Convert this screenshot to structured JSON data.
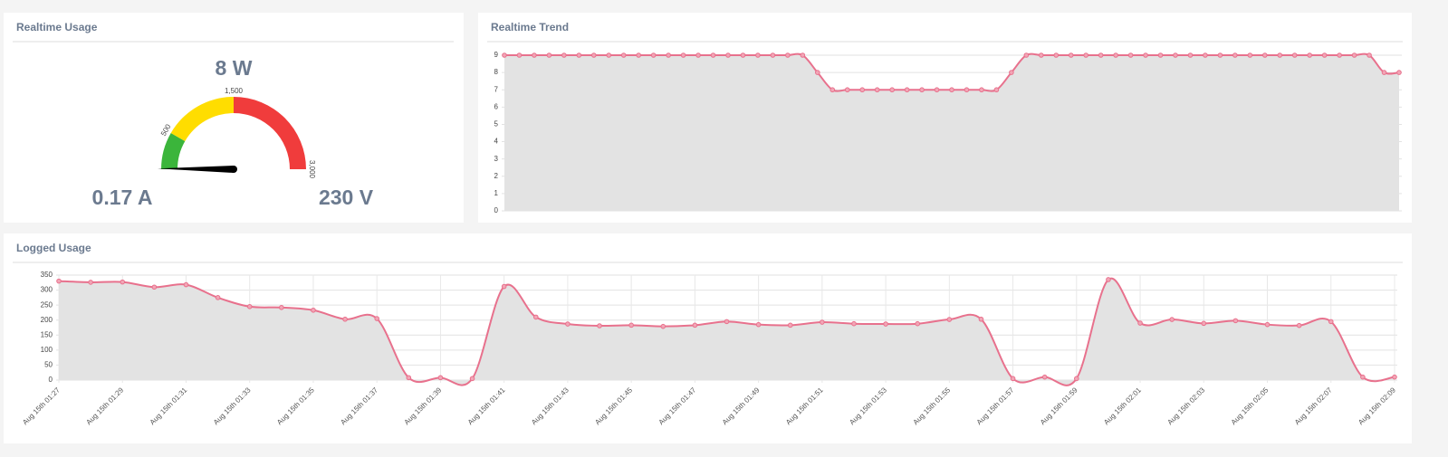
{
  "chart_data": [
    {
      "type": "gauge",
      "title": "Realtime Usage",
      "values": [
        8
      ],
      "value_labels": [
        "8 W"
      ],
      "annotations": [
        "0.17 A",
        "230 V"
      ],
      "ylim": [
        0,
        3000
      ],
      "yticks": [
        500,
        {
          "value": 1500,
          "label": "1,500"
        },
        {
          "value": 3000,
          "label": "3,000"
        }
      ],
      "bands": [
        {
          "from": 0,
          "to": 500,
          "color": "#3bb53b"
        },
        {
          "from": 500,
          "to": 1500,
          "color": "#ffdd00"
        },
        {
          "from": 1500,
          "to": 3000,
          "color": "#f03c3c"
        }
      ],
      "needle_color": "#000000"
    },
    {
      "type": "line",
      "title": "Realtime Trend",
      "values": [
        9,
        9,
        9,
        9,
        9,
        9,
        9,
        9,
        9,
        9,
        9,
        9,
        9,
        9,
        9,
        9,
        9,
        9,
        9,
        9,
        9,
        8,
        7,
        7,
        7,
        7,
        7,
        7,
        7,
        7,
        7,
        7,
        7,
        7,
        8,
        9,
        9,
        9,
        9,
        9,
        9,
        9,
        9,
        9,
        9,
        9,
        9,
        9,
        9,
        9,
        9,
        9,
        9,
        9,
        9,
        9,
        9,
        9,
        9,
        8,
        8
      ],
      "color": "#e8718d",
      "fill": "#e3e3e3",
      "ylim": [
        0,
        9
      ],
      "yticks": [
        0,
        1,
        2,
        3,
        4,
        5,
        6,
        7,
        8,
        9
      ],
      "grid": true,
      "vgrid": false
    },
    {
      "type": "line",
      "title": "Logged Usage",
      "categories": [
        "Aug 15th 01:27",
        null,
        "Aug 15th 01:29",
        null,
        "Aug 15th 01:31",
        null,
        "Aug 15th 01:33",
        null,
        "Aug 15th 01:35",
        null,
        "Aug 15th 01:37",
        null,
        "Aug 15th 01:39",
        null,
        "Aug 15th 01:41",
        null,
        "Aug 15th 01:43",
        null,
        "Aug 15th 01:45",
        null,
        "Aug 15th 01:47",
        null,
        "Aug 15th 01:49",
        null,
        "Aug 15th 01:51",
        null,
        "Aug 15th 01:53",
        null,
        "Aug 15th 01:55",
        null,
        "Aug 15th 01:57",
        null,
        "Aug 15th 01:59",
        null,
        "Aug 15th 02:01",
        null,
        "Aug 15th 02:03",
        null,
        "Aug 15th 02:05",
        null,
        "Aug 15th 02:07",
        null,
        "Aug 15th 02:09"
      ],
      "values": [
        330,
        326,
        327,
        310,
        318,
        275,
        245,
        242,
        233,
        203,
        205,
        8,
        8,
        5,
        312,
        210,
        187,
        181,
        183,
        179,
        183,
        195,
        185,
        183,
        193,
        188,
        187,
        188,
        202,
        203,
        5,
        10,
        5,
        335,
        190,
        202,
        189,
        198,
        185,
        182,
        195,
        10,
        10
      ],
      "color": "#e8718d",
      "fill": "#e3e3e3",
      "ylim": [
        0,
        350
      ],
      "yticks": [
        0,
        50,
        100,
        150,
        200,
        250,
        300,
        350
      ],
      "grid": true,
      "vgrid": true
    }
  ]
}
